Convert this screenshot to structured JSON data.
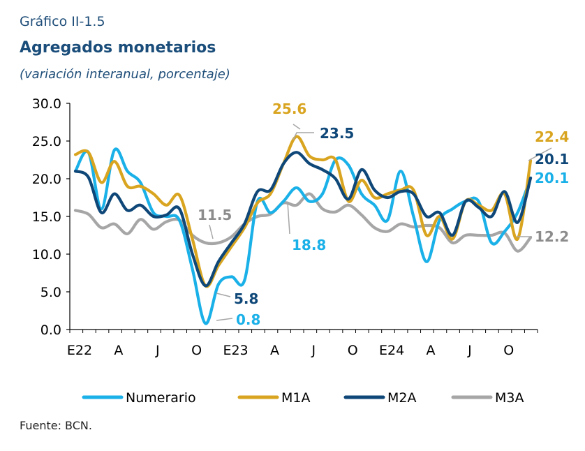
{
  "header": {
    "figure_label": "Gráfico II-1.5",
    "title": "Agregados monetarios",
    "subtitle": "(variación interanual, porcentaje)"
  },
  "source": "Fuente: BCN.",
  "chart_data": {
    "type": "line",
    "title": "Agregados monetarios",
    "ylim": [
      0,
      30
    ],
    "yticks": [
      "0.0",
      "5.0",
      "10.0",
      "15.0",
      "20.0",
      "25.0",
      "30.0"
    ],
    "x_tick_labels": [
      {
        "index": 0,
        "label": "E22"
      },
      {
        "index": 3,
        "label": "A"
      },
      {
        "index": 6,
        "label": "J"
      },
      {
        "index": 9,
        "label": "O"
      },
      {
        "index": 12,
        "label": "E23"
      },
      {
        "index": 15,
        "label": "A"
      },
      {
        "index": 18,
        "label": "J"
      },
      {
        "index": 21,
        "label": "O"
      },
      {
        "index": 24,
        "label": "E24"
      },
      {
        "index": 27,
        "label": "A"
      },
      {
        "index": 30,
        "label": "J"
      },
      {
        "index": 33,
        "label": "O"
      }
    ],
    "n_points": 36,
    "legend_position": "bottom",
    "grid": false,
    "series": [
      {
        "name": "Numerario",
        "color": "#1ab0e8",
        "values": [
          21.0,
          23.5,
          16.0,
          23.8,
          21.0,
          19.5,
          15.5,
          15.0,
          14.5,
          8.0,
          0.8,
          6.0,
          7.0,
          6.5,
          17.0,
          15.5,
          17.0,
          18.8,
          17.0,
          18.0,
          22.5,
          21.8,
          18.0,
          16.5,
          14.5,
          21.0,
          15.0,
          9.0,
          14.5,
          16.0,
          17.0,
          17.0,
          11.5,
          13.0,
          15.5,
          20.1
        ]
      },
      {
        "name": "M1A",
        "color": "#d9a520",
        "values": [
          23.2,
          23.5,
          19.5,
          22.3,
          19.0,
          19.0,
          18.0,
          16.5,
          17.8,
          12.0,
          5.8,
          8.5,
          11.0,
          13.5,
          16.8,
          18.0,
          22.0,
          25.6,
          23.0,
          22.5,
          22.5,
          17.0,
          19.8,
          17.5,
          18.0,
          18.5,
          18.5,
          12.5,
          15.0,
          12.0,
          17.0,
          16.5,
          15.8,
          18.0,
          12.0,
          22.4
        ]
      },
      {
        "name": "M2A",
        "color": "#0e4778",
        "values": [
          21.0,
          20.2,
          15.5,
          18.0,
          15.8,
          16.5,
          15.0,
          15.2,
          16.0,
          10.0,
          5.8,
          9.0,
          11.5,
          14.0,
          18.3,
          18.5,
          22.0,
          23.5,
          22.0,
          21.2,
          20.0,
          17.3,
          21.2,
          18.5,
          17.5,
          18.3,
          18.0,
          15.0,
          15.5,
          12.5,
          17.0,
          16.2,
          15.0,
          18.3,
          14.2,
          20.1
        ]
      },
      {
        "name": "M3A",
        "color": "#a6a6a6",
        "values": [
          15.8,
          15.3,
          13.5,
          14.0,
          12.7,
          14.6,
          13.3,
          14.3,
          14.5,
          12.5,
          11.5,
          11.5,
          12.3,
          14.0,
          15.0,
          15.3,
          16.8,
          16.5,
          18.0,
          16.0,
          15.6,
          16.5,
          15.2,
          13.5,
          13.0,
          14.0,
          13.6,
          13.8,
          13.5,
          11.5,
          12.5,
          12.5,
          12.5,
          12.8,
          10.4,
          12.2
        ]
      }
    ],
    "annotations": [
      {
        "text": "25.6",
        "series": "M1A",
        "color": "#d9a520"
      },
      {
        "text": "23.5",
        "series": "M2A",
        "color": "#0e4778"
      },
      {
        "text": "18.8",
        "series": "Numerario",
        "color": "#1ab0e8"
      },
      {
        "text": "11.5",
        "series": "M3A",
        "color": "#8c8c8c"
      },
      {
        "text": "5.8",
        "series": "M2A",
        "color": "#0e4778"
      },
      {
        "text": "0.8",
        "series": "Numerario",
        "color": "#1ab0e8"
      },
      {
        "text": "22.4",
        "series": "M1A",
        "color": "#d9a520"
      },
      {
        "text": "20.1",
        "series": "M2A",
        "color": "#0e4778"
      },
      {
        "text": "20.1",
        "series": "Numerario",
        "color": "#1ab0e8"
      },
      {
        "text": "12.2",
        "series": "M3A",
        "color": "#8c8c8c"
      }
    ]
  }
}
